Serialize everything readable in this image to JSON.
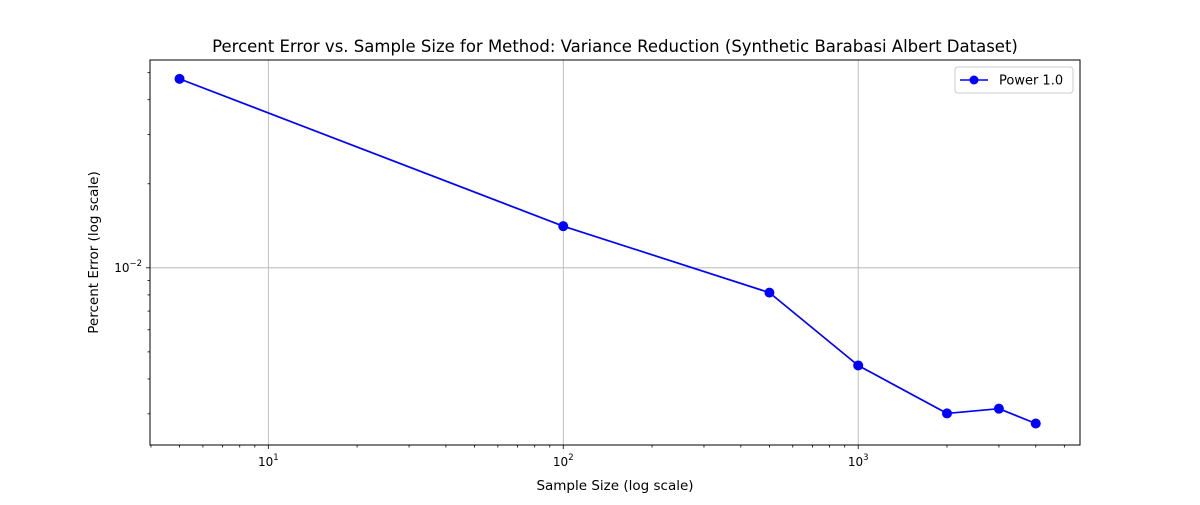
{
  "chart_data": {
    "type": "line",
    "title": "Percent Error vs. Sample Size for Method: Variance Reduction (Synthetic Barabasi Albert Dataset)",
    "xlabel": "Sample Size (log scale)",
    "ylabel": "Percent Error (log scale)",
    "xscale": "log",
    "yscale": "log",
    "xlim": [
      3.97,
      5650
    ],
    "ylim": [
      0.00232,
      0.0555
    ],
    "grid": true,
    "legend": "top-right",
    "x_ticks": [
      {
        "value": 10,
        "base": "10",
        "exp": "1"
      },
      {
        "value": 100,
        "base": "10",
        "exp": "2"
      },
      {
        "value": 1000,
        "base": "10",
        "exp": "3"
      }
    ],
    "y_ticks": [
      {
        "value": 0.01,
        "base": "10",
        "exp": "−2"
      }
    ],
    "series": [
      {
        "name": "Power 1.0",
        "color": "#0000ff",
        "marker": "circle",
        "x": [
          5,
          100,
          500,
          1000,
          2000,
          3000,
          4000
        ],
        "y": [
          0.0475,
          0.0141,
          0.00815,
          0.00447,
          0.00301,
          0.00313,
          0.00277
        ]
      }
    ]
  }
}
